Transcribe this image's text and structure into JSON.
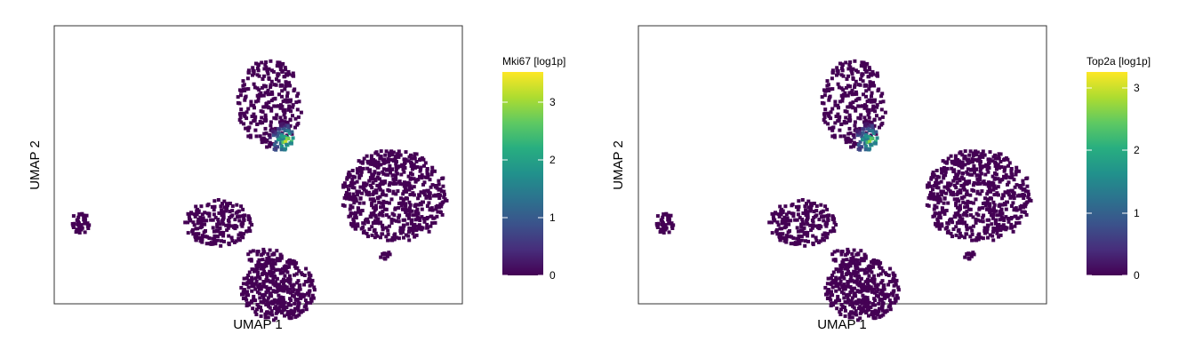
{
  "colors": {
    "low": "#440154",
    "high": "#fde725",
    "panel_border": "#333333"
  },
  "chart_data": [
    {
      "type": "scatter",
      "title": "",
      "xlabel": "UMAP 1",
      "ylabel": "UMAP 2",
      "color_label": "Mki67 [log1p]",
      "color_ticks": [
        "0",
        "1",
        "2",
        "3"
      ],
      "color_range": [
        0,
        3.5
      ],
      "grid": false,
      "legend": "right colorbar",
      "high_expression_cluster": "small upper-left cluster bridge",
      "max_value": 3.5
    },
    {
      "type": "scatter",
      "title": "",
      "xlabel": "UMAP 1",
      "ylabel": "UMAP 2",
      "color_label": "Top2a [log1p]",
      "color_ticks": [
        "0",
        "1",
        "2",
        "3"
      ],
      "color_range": [
        0,
        3.2
      ],
      "grid": false,
      "legend": "right colorbar",
      "high_expression_cluster": "small upper-left cluster bridge",
      "max_value": 3.2
    }
  ]
}
